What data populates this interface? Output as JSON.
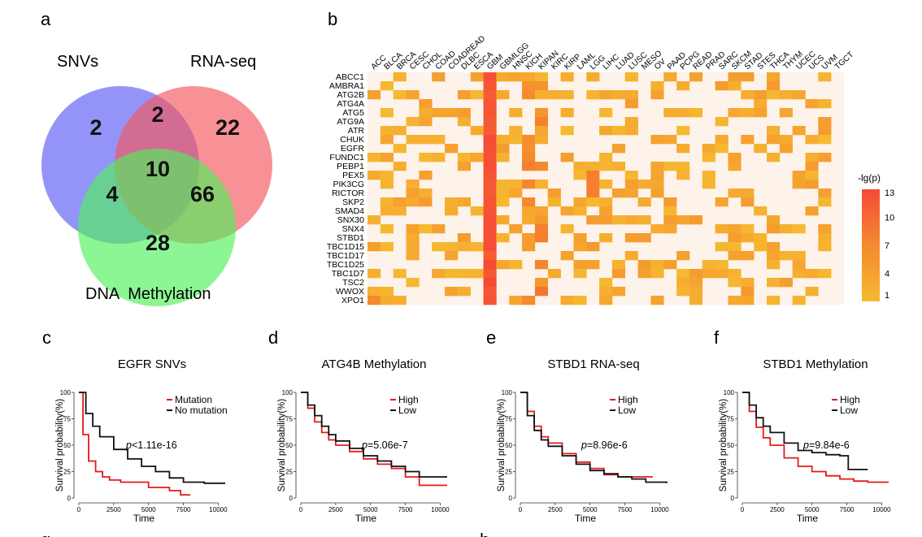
{
  "panel_labels": {
    "a": "a",
    "b": "b",
    "c": "c",
    "d": "d",
    "e": "e",
    "f": "f",
    "g": "g",
    "h": "h"
  },
  "venn": {
    "sets": [
      {
        "label": "SNVs",
        "color": "#5b5bf5"
      },
      {
        "label": "RNA-seq",
        "color": "#f4565c"
      },
      {
        "label": "DNA  Methylation",
        "color": "#4ff05b"
      }
    ],
    "counts": {
      "snv_only": "2",
      "snv_rna": "2",
      "rna_only": "22",
      "all": "10",
      "snv_meth": "4",
      "rna_meth": "66",
      "meth_only": "28"
    }
  },
  "heatmap": {
    "columns": [
      "ACC",
      "BLCA",
      "BRCA",
      "CESC",
      "CHOL",
      "COAD",
      "COADREAD",
      "DLBC",
      "ESCA",
      "GBM",
      "GBMLGG",
      "HNSC",
      "KICH",
      "KIPAN",
      "KIRC",
      "KIRP",
      "LAML",
      "LGG",
      "LIHC",
      "LUAD",
      "LUSC",
      "MESO",
      "OV",
      "PAAD",
      "PCPG",
      "READ",
      "PRAD",
      "SARC",
      "SKCM",
      "STAD",
      "STES",
      "THCA",
      "THYM",
      "UCEC",
      "UCS",
      "UVM",
      "TGCT"
    ],
    "rows": [
      "ABCC1",
      "AMBRA1",
      "ATG2B",
      "ATG4A",
      "ATG5",
      "ATG9A",
      "ATR",
      "CHUK",
      "EGFR",
      "FUNDC1",
      "PEBP1",
      "PEX5",
      "PIK3CG",
      "RICTOR",
      "SKP2",
      "SMAD4",
      "SNX30",
      "SNX4",
      "STBD1",
      "TBC1D15",
      "TBC1D17",
      "TBC1D25",
      "TBC1D7",
      "TSC2",
      "WWOX",
      "XPO1"
    ],
    "legend_title": "-lg(p)",
    "legend_ticks": [
      13,
      10,
      7,
      4,
      1
    ],
    "colors": {
      "background": "#fdf3ea",
      "low": "#f6b930",
      "high": "#f54a36"
    }
  },
  "km": [
    {
      "label": "c",
      "title": "EGFR SNVs",
      "ylabel": "Survival probability(%)",
      "xlabel": "Time",
      "legend": [
        {
          "name": "Mutation",
          "color": "#e41a1c"
        },
        {
          "name": "No mutation",
          "color": "#111111"
        }
      ],
      "pvalue": "p<1.11e-16",
      "pv_prefix": "p",
      "pv_rest": "<1.11e-16",
      "yticks": [
        0,
        25,
        50,
        75,
        100
      ],
      "xticks": [
        0,
        2500,
        5000,
        7500,
        10000
      ]
    },
    {
      "label": "d",
      "title": "ATG4B Methylation",
      "ylabel": "Survival probability(%)",
      "xlabel": "Time",
      "legend": [
        {
          "name": "High",
          "color": "#e41a1c"
        },
        {
          "name": "Low",
          "color": "#111111"
        }
      ],
      "pvalue": "p=5.06e-7",
      "pv_prefix": "p",
      "pv_rest": "=5.06e-7",
      "yticks": [
        0,
        25,
        50,
        75,
        100
      ],
      "xticks": [
        0,
        2500,
        5000,
        7500,
        10000
      ]
    },
    {
      "label": "e",
      "title": "STBD1 RNA-seq",
      "ylabel": "Survival probability(%)",
      "xlabel": "Time",
      "legend": [
        {
          "name": "High",
          "color": "#e41a1c"
        },
        {
          "name": "Low",
          "color": "#111111"
        }
      ],
      "pvalue": "p=8.96e-6",
      "pv_prefix": "p",
      "pv_rest": "=8.96e-6",
      "yticks": [
        0,
        25,
        50,
        75,
        100
      ],
      "xticks": [
        0,
        2500,
        5000,
        7500,
        10000
      ]
    },
    {
      "label": "f",
      "title": "STBD1 Methylation",
      "ylabel": "Survival probability(%)",
      "xlabel": "Time",
      "legend": [
        {
          "name": "High",
          "color": "#e41a1c"
        },
        {
          "name": "Low",
          "color": "#111111"
        }
      ],
      "pvalue": "p=9.84e-6",
      "pv_prefix": "p",
      "pv_rest": "=9.84e-6",
      "yticks": [
        0,
        25,
        50,
        75,
        100
      ],
      "xticks": [
        0,
        2500,
        5000,
        7500,
        10000
      ]
    }
  ],
  "chart_data": [
    {
      "type": "heatmap",
      "title": "b",
      "x": [
        "ACC",
        "BLCA",
        "BRCA",
        "CESC",
        "CHOL",
        "COAD",
        "COADREAD",
        "DLBC",
        "ESCA",
        "GBM",
        "GBMLGG",
        "HNSC",
        "KICH",
        "KIPAN",
        "KIRC",
        "KIRP",
        "LAML",
        "LGG",
        "LIHC",
        "LUAD",
        "LUSC",
        "MESO",
        "OV",
        "PAAD",
        "PCPG",
        "READ",
        "PRAD",
        "SARC",
        "SKCM",
        "STAD",
        "STES",
        "THCA",
        "THYM",
        "UCEC",
        "UCS",
        "UVM",
        "TGCT"
      ],
      "y": [
        "ABCC1",
        "AMBRA1",
        "ATG2B",
        "ATG4A",
        "ATG5",
        "ATG9A",
        "ATR",
        "CHUK",
        "EGFR",
        "FUNDC1",
        "PEBP1",
        "PEX5",
        "PIK3CG",
        "RICTOR",
        "SKP2",
        "SMAD4",
        "SNX30",
        "SNX4",
        "STBD1",
        "TBC1D15",
        "TBC1D17",
        "TBC1D25",
        "TBC1D7",
        "TSC2",
        "WWOX",
        "XPO1"
      ],
      "legend": "-lg(p)",
      "range": [
        1,
        13
      ]
    },
    {
      "type": "line",
      "title": "EGFR SNVs",
      "xlabel": "Time",
      "ylabel": "Survival probability(%)",
      "xlim": [
        0,
        10500
      ],
      "ylim": [
        0,
        100
      ],
      "series": [
        {
          "name": "Mutation",
          "x": [
            0,
            300,
            700,
            1200,
            1700,
            2200,
            3000,
            4000,
            5000,
            6500,
            7300,
            8000
          ],
          "values": [
            100,
            60,
            35,
            25,
            20,
            17,
            15,
            15,
            10,
            7,
            3,
            3
          ]
        },
        {
          "name": "No mutation",
          "x": [
            0,
            500,
            1000,
            1500,
            2500,
            3500,
            4500,
            5500,
            6500,
            7500,
            9000,
            10500
          ],
          "values": [
            100,
            80,
            68,
            58,
            46,
            37,
            30,
            25,
            19,
            15,
            14,
            14
          ]
        }
      ]
    },
    {
      "type": "line",
      "title": "ATG4B Methylation",
      "xlabel": "Time",
      "ylabel": "Survival probability(%)",
      "xlim": [
        0,
        10500
      ],
      "ylim": [
        0,
        100
      ],
      "series": [
        {
          "name": "High",
          "x": [
            0,
            500,
            1000,
            1500,
            2000,
            2500,
            3500,
            4500,
            5500,
            6500,
            7500,
            8500,
            10500
          ],
          "values": [
            100,
            85,
            72,
            62,
            55,
            50,
            44,
            37,
            32,
            28,
            20,
            12,
            12
          ]
        },
        {
          "name": "Low",
          "x": [
            0,
            500,
            1000,
            1500,
            2000,
            2500,
            3500,
            4500,
            5500,
            6500,
            7500,
            8500,
            10500
          ],
          "values": [
            100,
            88,
            78,
            68,
            60,
            54,
            47,
            40,
            35,
            30,
            25,
            20,
            20
          ]
        }
      ]
    },
    {
      "type": "line",
      "title": "STBD1 RNA-seq",
      "xlabel": "Time",
      "ylabel": "Survival probability(%)",
      "xlim": [
        0,
        10500
      ],
      "ylim": [
        0,
        100
      ],
      "series": [
        {
          "name": "High",
          "x": [
            0,
            500,
            1000,
            1500,
            2000,
            3000,
            4000,
            5000,
            6000,
            7000,
            8000,
            9500
          ],
          "values": [
            100,
            82,
            68,
            58,
            52,
            42,
            34,
            28,
            22,
            20,
            20,
            20
          ]
        },
        {
          "name": "Low",
          "x": [
            0,
            500,
            1000,
            1500,
            2000,
            3000,
            4000,
            5000,
            6000,
            7000,
            8000,
            9000,
            10500
          ],
          "values": [
            100,
            78,
            64,
            55,
            49,
            40,
            32,
            26,
            23,
            20,
            18,
            15,
            14
          ]
        }
      ]
    },
    {
      "type": "line",
      "title": "STBD1 Methylation",
      "xlabel": "Time",
      "ylabel": "Survival probability(%)",
      "xlim": [
        0,
        10500
      ],
      "ylim": [
        0,
        100
      ],
      "series": [
        {
          "name": "High",
          "x": [
            0,
            500,
            1000,
            1500,
            2000,
            3000,
            4000,
            5000,
            6000,
            7000,
            8000,
            9000,
            10500
          ],
          "values": [
            100,
            82,
            67,
            57,
            50,
            38,
            30,
            25,
            21,
            18,
            16,
            15,
            15
          ]
        },
        {
          "name": "Low",
          "x": [
            0,
            500,
            1000,
            1500,
            2000,
            3000,
            4000,
            5000,
            6000,
            7000,
            7500,
            7600,
            9000
          ],
          "values": [
            100,
            88,
            76,
            68,
            62,
            52,
            45,
            43,
            41,
            40,
            40,
            27,
            27
          ]
        }
      ]
    }
  ]
}
